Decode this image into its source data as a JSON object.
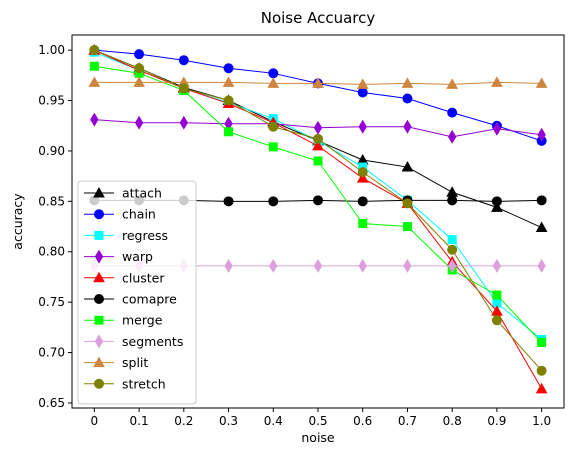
{
  "chart_data": {
    "type": "line",
    "title": "Noise Accuarcy",
    "xlabel": "noise",
    "ylabel": "accuracy",
    "categories": [
      "0",
      "0.1",
      "0.2",
      "0.3",
      "0.4",
      "0.5",
      "0.6",
      "0.7",
      "0.8",
      "0.9",
      "1.0"
    ],
    "x": [
      0,
      0.1,
      0.2,
      0.3,
      0.4,
      0.5,
      0.6,
      0.7,
      0.8,
      0.9,
      1.0
    ],
    "yticks": [
      "0.65",
      "0.70",
      "0.75",
      "0.80",
      "0.85",
      "0.90",
      "0.95",
      "1.00"
    ],
    "ylim": [
      0.645,
      1.015
    ],
    "grid": false,
    "legend_position": "lower-left",
    "series": [
      {
        "name": "attach",
        "color": "#000000",
        "marker": "triangle",
        "values": [
          1.0,
          0.982,
          0.963,
          0.95,
          0.929,
          0.91,
          0.891,
          0.884,
          0.859,
          0.844,
          0.824
        ]
      },
      {
        "name": "chain",
        "color": "#0000ff",
        "marker": "circle",
        "values": [
          1.0,
          0.996,
          0.99,
          0.982,
          0.977,
          0.967,
          0.958,
          0.952,
          0.938,
          0.925,
          0.91
        ]
      },
      {
        "name": "regress",
        "color": "#00ffff",
        "marker": "square",
        "values": [
          0.998,
          0.98,
          0.962,
          0.948,
          0.932,
          0.91,
          0.884,
          0.851,
          0.812,
          0.749,
          0.713
        ]
      },
      {
        "name": "warp",
        "color": "#9400d3",
        "marker": "thin-diamond",
        "values": [
          0.931,
          0.928,
          0.928,
          0.927,
          0.927,
          0.923,
          0.924,
          0.924,
          0.914,
          0.922,
          0.916
        ]
      },
      {
        "name": "cluster",
        "color": "#ff0000",
        "marker": "triangle",
        "values": [
          1.0,
          0.98,
          0.962,
          0.947,
          0.928,
          0.905,
          0.873,
          0.848,
          0.79,
          0.741,
          0.664
        ]
      },
      {
        "name": "comapre",
        "color": "#000000",
        "marker": "circle",
        "values": [
          0.851,
          0.851,
          0.851,
          0.85,
          0.85,
          0.851,
          0.85,
          0.851,
          0.851,
          0.85,
          0.851
        ]
      },
      {
        "name": "merge",
        "color": "#00ff00",
        "marker": "square",
        "values": [
          0.984,
          0.977,
          0.96,
          0.919,
          0.904,
          0.89,
          0.828,
          0.825,
          0.782,
          0.757,
          0.71
        ]
      },
      {
        "name": "segments",
        "color": "#dda0dd",
        "marker": "thin-diamond",
        "values": [
          0.786,
          0.786,
          0.786,
          0.786,
          0.786,
          0.786,
          0.786,
          0.786,
          0.786,
          0.786,
          0.786
        ]
      },
      {
        "name": "split",
        "color": "#cd853f",
        "marker": "triangle",
        "values": [
          0.968,
          0.968,
          0.968,
          0.968,
          0.967,
          0.967,
          0.966,
          0.967,
          0.966,
          0.968,
          0.967
        ]
      },
      {
        "name": "stretch",
        "color": "#808000",
        "marker": "circle",
        "values": [
          1.0,
          0.982,
          0.962,
          0.95,
          0.924,
          0.912,
          0.879,
          0.848,
          0.802,
          0.732,
          0.682
        ]
      }
    ]
  }
}
